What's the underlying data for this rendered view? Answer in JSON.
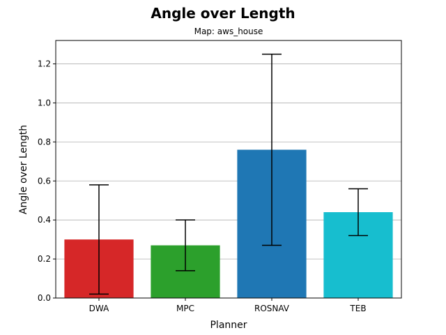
{
  "chart_data": {
    "type": "bar",
    "title": "Angle over Length",
    "subtitle": "Map: aws_house",
    "xlabel": "Planner",
    "ylabel": "Angle over Length",
    "categories": [
      "DWA",
      "MPC",
      "ROSNAV",
      "TEB"
    ],
    "values": [
      0.3,
      0.27,
      0.76,
      0.44
    ],
    "error_low": [
      0.02,
      0.14,
      0.27,
      0.32
    ],
    "error_high": [
      0.58,
      0.4,
      1.25,
      0.56
    ],
    "colors": [
      "#d62728",
      "#2ca02c",
      "#1f77b4",
      "#17becf"
    ],
    "ylim": [
      0,
      1.32
    ],
    "yticks": [
      "0.0",
      "0.2",
      "0.4",
      "0.6",
      "0.8",
      "1.0",
      "1.2"
    ],
    "grid": "horizontal"
  }
}
